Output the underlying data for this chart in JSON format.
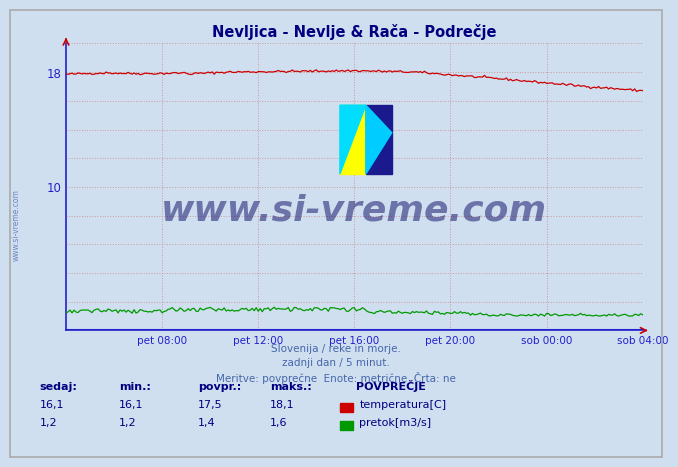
{
  "title": "Nevljica - Nevlje & Rača - Podrečje",
  "title_color": "#000080",
  "bg_color": "#d0dff0",
  "plot_bg_color": "#d0dff0",
  "grid_color": "#cc9999",
  "xlim": [
    0,
    288
  ],
  "ylim": [
    0,
    20
  ],
  "ytick_positions": [
    10,
    18
  ],
  "ytick_labels": [
    "10",
    "18"
  ],
  "xtick_positions": [
    48,
    96,
    144,
    192,
    240,
    288
  ],
  "xtick_labels": [
    "pet 08:00",
    "pet 12:00",
    "pet 16:00",
    "pet 20:00",
    "sob 00:00",
    "sob 04:00"
  ],
  "watermark_text": "www.si-vreme.com",
  "watermark_color": "#1a1a6e",
  "sidebar_text": "www.si-vreme.com",
  "sidebar_color": "#4466aa",
  "footer_line1": "Slovenija / reke in morje.",
  "footer_line2": "zadnji dan / 5 minut.",
  "footer_line3": "Meritve: povprečne  Enote: metrične  Črta: ne",
  "footer_color": "#4466aa",
  "temp_color": "#cc0000",
  "flow_color": "#009900",
  "axis_color": "#2222cc",
  "legend_title": "POVPREČJE",
  "legend_label1": "temperatura[C]",
  "legend_label2": "pretok[m3/s]",
  "table_headers": [
    "sedaj:",
    "min.:",
    "povpr.:",
    "maks.:"
  ],
  "table_temp": [
    "16,1",
    "16,1",
    "17,5",
    "18,1"
  ],
  "table_flow": [
    "1,2",
    "1,2",
    "1,4",
    "1,6"
  ],
  "table_color": "#000080",
  "n_points": 289
}
